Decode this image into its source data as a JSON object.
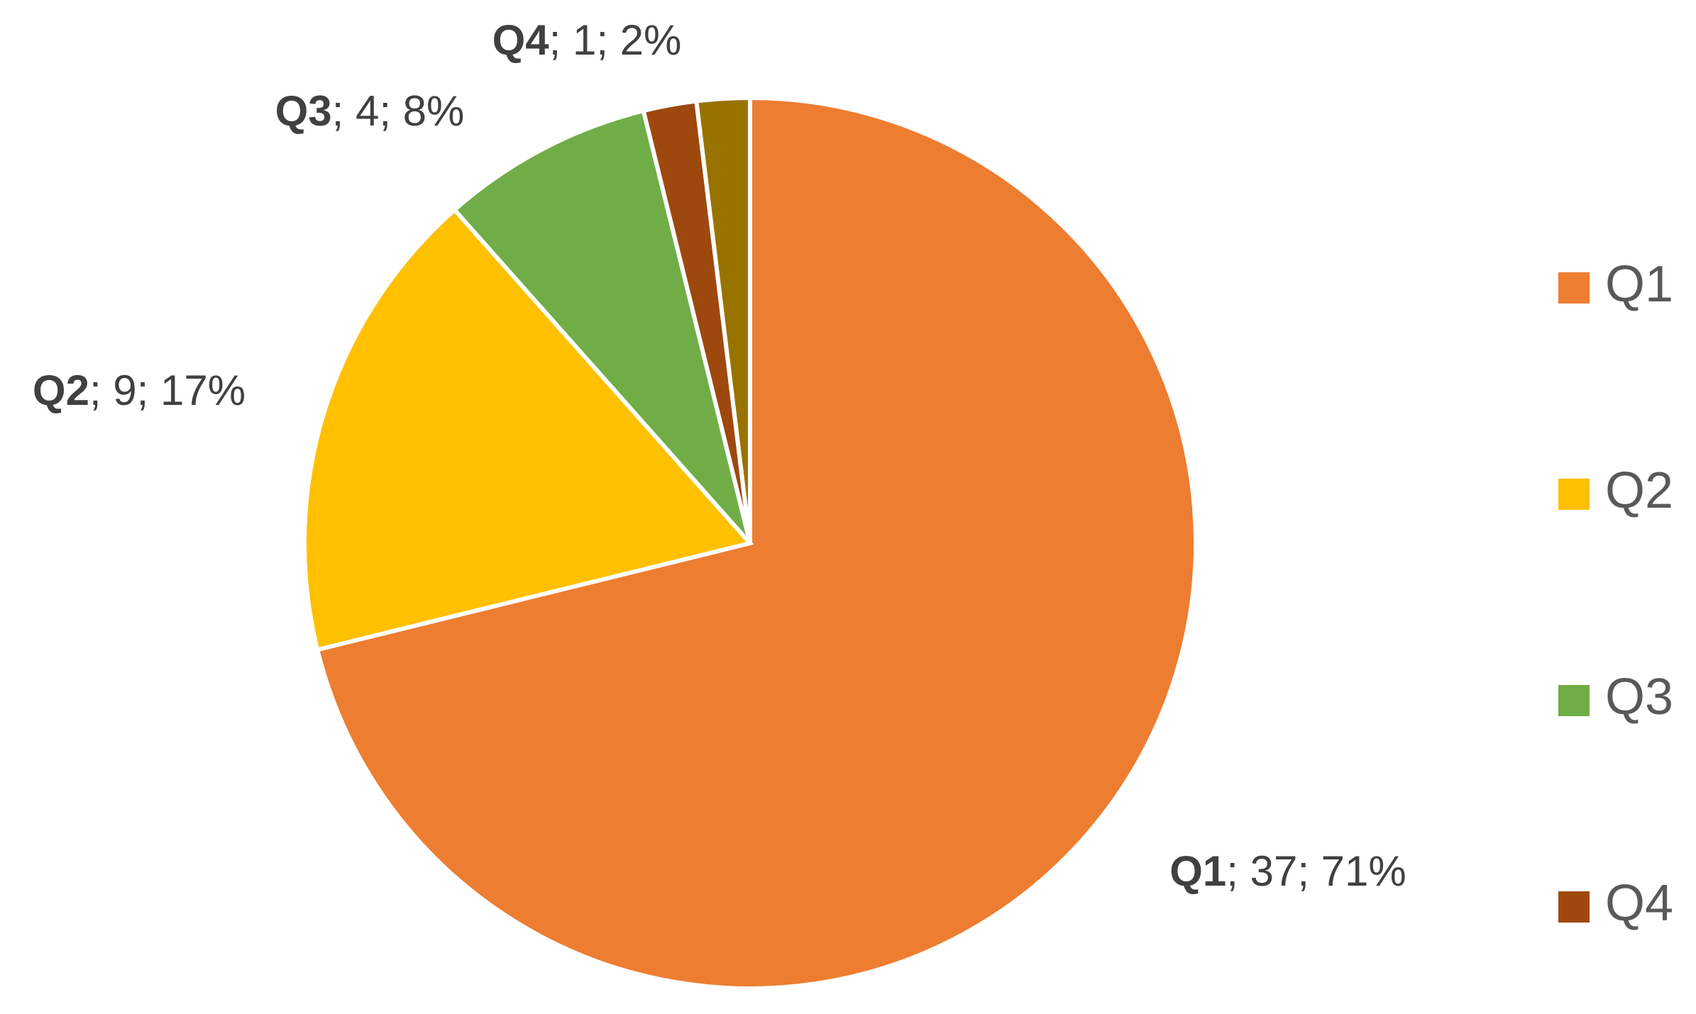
{
  "chart_data": {
    "type": "pie",
    "categories": [
      "Q1",
      "Q2",
      "Q3",
      "Q4",
      null
    ],
    "values": [
      37,
      9,
      4,
      1,
      1
    ],
    "value_labels": [
      "; 37; 71%",
      "; 9; 17%",
      "; 4; 8%",
      "; 1; 2%",
      null
    ],
    "colors": [
      "#ED7D31",
      "#FFC000",
      "#70AD47",
      "#9E480E",
      "#997300"
    ],
    "legend": "right"
  }
}
